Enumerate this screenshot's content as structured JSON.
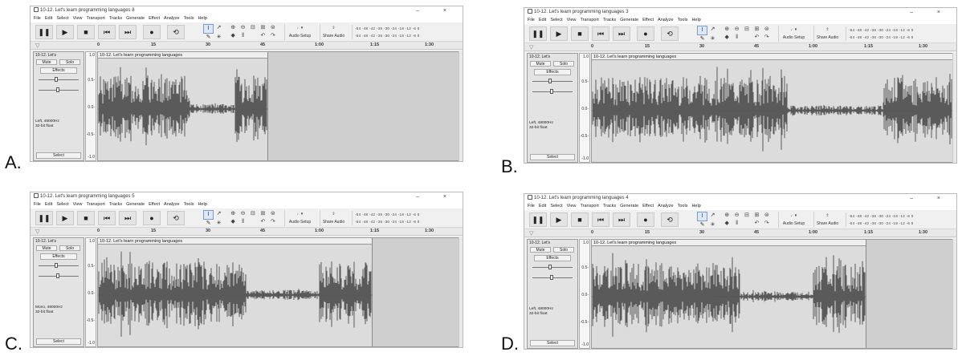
{
  "options": [
    {
      "letter": "A.",
      "title": "10-12. Let's learn programming languages 8",
      "track_name": "10-12. Let's",
      "clip_title": "10-12. Let's learn programming languages",
      "info": [
        "Left, 48000Hz",
        "32-bit float"
      ],
      "clip_end_fraction": 0.47,
      "seed": 3
    },
    {
      "letter": "B.",
      "title": "10-12. Let's learn programming languages 3",
      "track_name": "10-12. Let's",
      "clip_title": "10-12. Let's learn programming languages",
      "info": [
        "Left, 48000Hz",
        "32-bit float"
      ],
      "clip_end_fraction": 1.0,
      "seed": 7
    },
    {
      "letter": "C.",
      "title": "10-12. Let's learn programming languages 5",
      "track_name": "10-12. Let's",
      "clip_title": "10-12. Let's learn programming languages",
      "info": [
        "Mono, 48000Hz",
        "32-bit float"
      ],
      "clip_end_fraction": 0.76,
      "seed": 11
    },
    {
      "letter": "D.",
      "title": "10-12. Let's learn programming languages 4",
      "track_name": "10-12. Let's",
      "clip_title": "10-12. Let's learn programming languages",
      "info": [
        "Left, 48000Hz",
        "32-bit float"
      ],
      "clip_end_fraction": 0.76,
      "seed": 19
    }
  ],
  "menu": [
    "File",
    "Edit",
    "Select",
    "View",
    "Transport",
    "Tracks",
    "Generate",
    "Effect",
    "Analyze",
    "Tools",
    "Help"
  ],
  "toolbar": {
    "audio_setup": "Audio Setup",
    "share_audio": "Share Audio",
    "meter_scale": "-54 -48 -42 -36 -30 -24 -18 -12 -6 0"
  },
  "timeline_ticks": [
    "0",
    "15",
    "30",
    "45",
    "1:00",
    "1:15",
    "1:30"
  ],
  "track_ctl": {
    "mute": "Mute",
    "solo": "Solo",
    "effects": "Effects",
    "select": "Select"
  },
  "vruler_labels": [
    "1.0",
    "0.5-",
    "0.0-",
    "-0.5-",
    "-1.0"
  ]
}
